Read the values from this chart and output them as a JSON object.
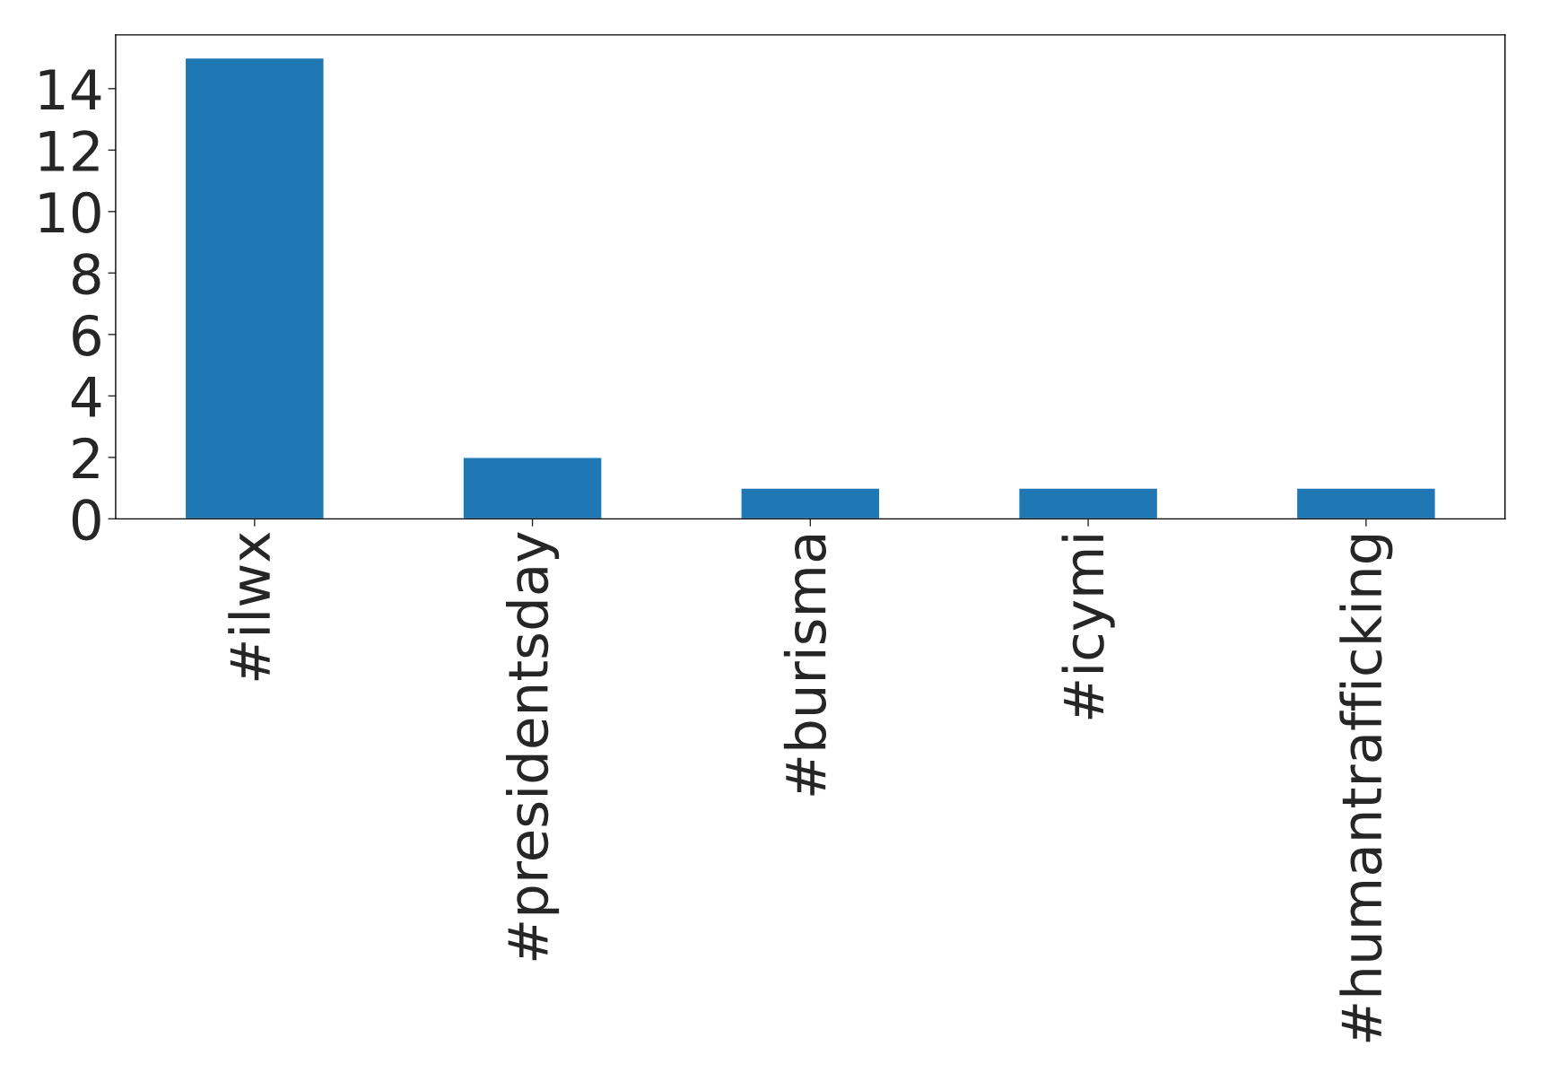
{
  "chart_data": {
    "type": "bar",
    "categories": [
      "#ilwx",
      "#presidentsday",
      "#burisma",
      "#icymi",
      "#humantrafficking"
    ],
    "values": [
      15,
      2,
      1,
      1,
      1
    ],
    "color": "#1f77b4",
    "ylim": [
      0,
      15.75
    ],
    "yticks": [
      0,
      2,
      4,
      6,
      8,
      10,
      12,
      14
    ],
    "grid": false,
    "legend": false
  }
}
